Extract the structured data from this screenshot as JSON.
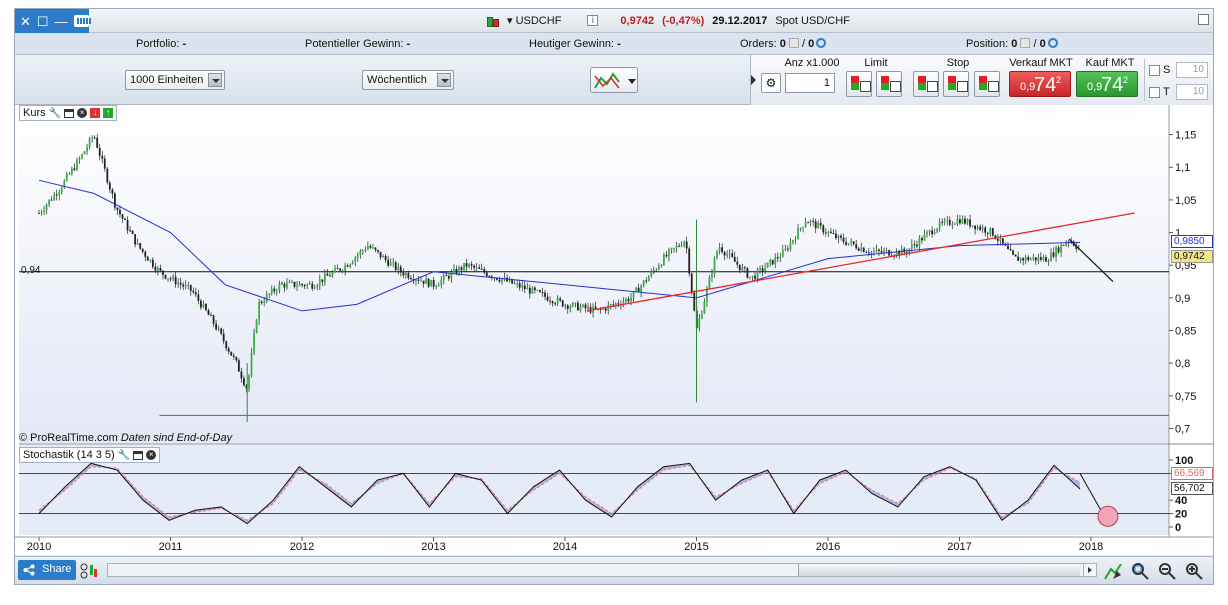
{
  "window": {
    "symbol": "USDCHF",
    "price": "0,9742",
    "change": "(-0,47%)",
    "date": "29.12.2017",
    "instrument_desc": "Spot USD/CHF"
  },
  "status": {
    "portfolio_label": "Portfolio:",
    "portfolio_value": "-",
    "potential_gain_label": "Potentieller Gewinn:",
    "potential_gain_value": "-",
    "today_gain_label": "Heutiger Gewinn:",
    "today_gain_value": "-",
    "orders_label": "Orders:",
    "orders_value": "0",
    "orders_sep": "/",
    "orders_value2": "0",
    "position_label": "Position:",
    "position_value": "0",
    "position_sep": "/",
    "position_value2": "0"
  },
  "toolbar": {
    "units_select": "1000 Einheiten",
    "period_select": "Wöchentlich",
    "qty_label": "Anz x1.000",
    "qty_value": "1",
    "limit_label": "Limit",
    "stop_label": "Stop",
    "sell_label": "Verkauf MKT",
    "buy_label": "Kauf MKT",
    "sell_price_small": "0,9",
    "sell_price_big": "74",
    "sell_price_sup": "2",
    "buy_price_small": "0,9",
    "buy_price_big": "74",
    "buy_price_sup": "2",
    "s_label": "S",
    "t_label": "T",
    "s_value": "10",
    "t_value": "10"
  },
  "chart": {
    "price_panel_label": "Kurs",
    "stoch_panel_label": "Stochastik (14 3 5)",
    "copyright": "© ProRealTime.com",
    "copyright_note": "Daten sind End-of-Day",
    "hline_label": "0,94",
    "ma_badge": "0,9850",
    "price_badge": "0,9742",
    "stoch_badge_1": "66,569",
    "stoch_badge_2": "56,702"
  },
  "bottombar": {
    "share_label": "Share"
  },
  "colors": {
    "accent": "#2d7cc9",
    "sell": "#d43a3a",
    "buy": "#37a83c",
    "trendline": "#e8262b",
    "ma": "#2431d6",
    "support": "#2e8b2e"
  },
  "chart_data": [
    {
      "type": "candlestick",
      "series": [
        {
          "name": "USDCHF",
          "x": [
            "2010-01",
            "2010-03",
            "2010-05",
            "2010-06",
            "2010-08",
            "2010-10",
            "2010-12",
            "2011-03",
            "2011-05",
            "2011-07",
            "2011-08",
            "2011-09",
            "2011-11",
            "2012-02",
            "2012-05",
            "2012-07",
            "2012-10",
            "2013-01",
            "2013-04",
            "2013-07",
            "2013-10",
            "2014-01",
            "2014-04",
            "2014-07",
            "2014-10",
            "2014-12",
            "2015-01",
            "2015-03",
            "2015-06",
            "2015-09",
            "2015-11",
            "2016-02",
            "2016-05",
            "2016-08",
            "2016-11",
            "2017-01",
            "2017-04",
            "2017-06",
            "2017-09",
            "2017-11",
            "2017-12"
          ],
          "values": [
            1.03,
            1.07,
            1.12,
            1.15,
            1.04,
            0.98,
            0.94,
            0.91,
            0.86,
            0.8,
            0.76,
            0.89,
            0.92,
            0.92,
            0.95,
            0.98,
            0.94,
            0.92,
            0.95,
            0.93,
            0.91,
            0.89,
            0.88,
            0.9,
            0.96,
            0.99,
            0.85,
            0.98,
            0.93,
            0.97,
            1.02,
            0.99,
            0.97,
            0.97,
            1.01,
            1.02,
            1.0,
            0.96,
            0.96,
            0.99,
            0.9742
          ]
        },
        {
          "name": "MA",
          "x": [
            "2010-01",
            "2010-06",
            "2011-01",
            "2011-06",
            "2012-01",
            "2012-06",
            "2013-01",
            "2014-01",
            "2015-01",
            "2016-01",
            "2017-01",
            "2017-12"
          ],
          "values": [
            1.08,
            1.06,
            1.0,
            0.92,
            0.88,
            0.89,
            0.94,
            0.92,
            0.9,
            0.96,
            0.98,
            0.985
          ]
        }
      ],
      "x_ticks": [
        "2010",
        "2011",
        "2012",
        "2013",
        "2014",
        "2015",
        "2016",
        "2017",
        "2018"
      ],
      "y_ticks": [
        "1,15",
        "1,1",
        "1,05",
        "1",
        "0,95",
        "0,9",
        "0,85",
        "0,8",
        "0,75",
        "0,7"
      ],
      "ylim": [
        0.69,
        1.18
      ],
      "hlines": [
        0.94,
        0.72
      ],
      "trendline": {
        "from": [
          "2014-03",
          0.88
        ],
        "to": [
          "2018-05",
          1.03
        ]
      },
      "grid": false
    },
    {
      "type": "line",
      "x_ticks": [
        "2010",
        "2011",
        "2012",
        "2013",
        "2014",
        "2015",
        "2016",
        "2017",
        "2018"
      ],
      "y_ticks": [
        "100",
        "80",
        "40",
        "20",
        "0"
      ],
      "ylim": [
        0,
        100
      ],
      "hlines": [
        80,
        20
      ],
      "series": [
        {
          "name": "%K",
          "values": [
            20,
            60,
            95,
            85,
            40,
            10,
            25,
            30,
            5,
            40,
            90,
            60,
            30,
            70,
            80,
            30,
            80,
            70,
            20,
            60,
            85,
            40,
            15,
            60,
            90,
            95,
            40,
            70,
            85,
            20,
            70,
            85,
            50,
            30,
            75,
            90,
            70,
            10,
            40,
            92,
            56.702
          ]
        },
        {
          "name": "%D",
          "values": [
            25,
            55,
            90,
            88,
            45,
            15,
            22,
            28,
            10,
            35,
            85,
            65,
            35,
            65,
            80,
            35,
            75,
            72,
            25,
            55,
            80,
            45,
            20,
            55,
            85,
            92,
            45,
            65,
            82,
            25,
            65,
            82,
            55,
            35,
            70,
            88,
            72,
            15,
            35,
            88,
            66.569
          ]
        }
      ]
    }
  ]
}
